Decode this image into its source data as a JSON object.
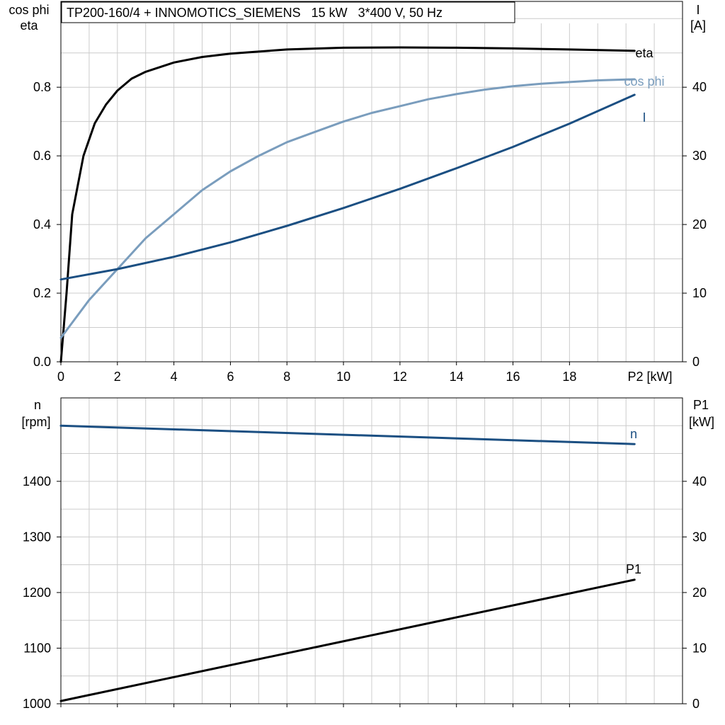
{
  "chart_data": [
    {
      "type": "line",
      "title": "TP200-160/4 + INNOMOTICS_SIEMENS   15 kW   3*400 V, 50 Hz",
      "xlabel": "P2 [kW]",
      "ylabel_left": [
        "cos phi",
        "eta"
      ],
      "ylabel_right": [
        "I",
        "[A]"
      ],
      "xlim": [
        0,
        22
      ],
      "ylim_left": [
        0,
        1.05
      ],
      "ylim_right": [
        0,
        52.5
      ],
      "x_ticks": [
        "0",
        "2",
        "4",
        "6",
        "8",
        "10",
        "12",
        "14",
        "16",
        "18"
      ],
      "y_left_ticks": [
        "0.0",
        "0.2",
        "0.4",
        "0.6",
        "0.8"
      ],
      "y_right_ticks": [
        "0",
        "10",
        "20",
        "30",
        "40"
      ],
      "grid": true,
      "series": [
        {
          "name": "eta",
          "axis": "left",
          "color": "#000000",
          "x": [
            0,
            0.2,
            0.4,
            0.8,
            1.2,
            1.6,
            2.0,
            2.5,
            3,
            4,
            5,
            6,
            8,
            10,
            12,
            14,
            16,
            18,
            20.3
          ],
          "y": [
            0.0,
            0.2,
            0.43,
            0.6,
            0.695,
            0.75,
            0.79,
            0.825,
            0.845,
            0.872,
            0.888,
            0.898,
            0.91,
            0.915,
            0.916,
            0.915,
            0.913,
            0.91,
            0.906
          ]
        },
        {
          "name": "cos phi",
          "axis": "left",
          "color": "#7a9dbd",
          "x": [
            0,
            1,
            2,
            3,
            4,
            5,
            6,
            7,
            8,
            9,
            10,
            11,
            12,
            13,
            14,
            15,
            16,
            17,
            18,
            19,
            20.3
          ],
          "y": [
            0.07,
            0.18,
            0.27,
            0.36,
            0.43,
            0.5,
            0.555,
            0.6,
            0.64,
            0.67,
            0.7,
            0.725,
            0.745,
            0.765,
            0.78,
            0.793,
            0.803,
            0.81,
            0.815,
            0.82,
            0.823
          ]
        },
        {
          "name": "I",
          "axis": "right",
          "color": "#1b4f82",
          "x": [
            0,
            2,
            4,
            6,
            8,
            10,
            12,
            14,
            16,
            18,
            20.3
          ],
          "y": [
            12.0,
            13.5,
            15.3,
            17.4,
            19.8,
            22.4,
            25.2,
            28.2,
            31.3,
            34.7,
            38.9
          ]
        }
      ]
    },
    {
      "type": "line",
      "xlabel": "",
      "ylabel_left": [
        "n",
        "[rpm]"
      ],
      "ylabel_right": [
        "P1",
        "[kW]"
      ],
      "xlim": [
        0,
        22
      ],
      "ylim_left": [
        1000,
        1550
      ],
      "ylim_right": [
        0,
        55
      ],
      "y_left_ticks": [
        "1000",
        "1100",
        "1200",
        "1300",
        "1400"
      ],
      "y_right_ticks": [
        "0",
        "10",
        "20",
        "30",
        "40"
      ],
      "grid": true,
      "series": [
        {
          "name": "n",
          "axis": "left",
          "color": "#1b4f82",
          "x": [
            0,
            20.3
          ],
          "y": [
            1500,
            1467
          ]
        },
        {
          "name": "P1",
          "axis": "right",
          "color": "#000000",
          "x": [
            0,
            20.3
          ],
          "y": [
            0.5,
            22.3
          ]
        }
      ]
    }
  ]
}
